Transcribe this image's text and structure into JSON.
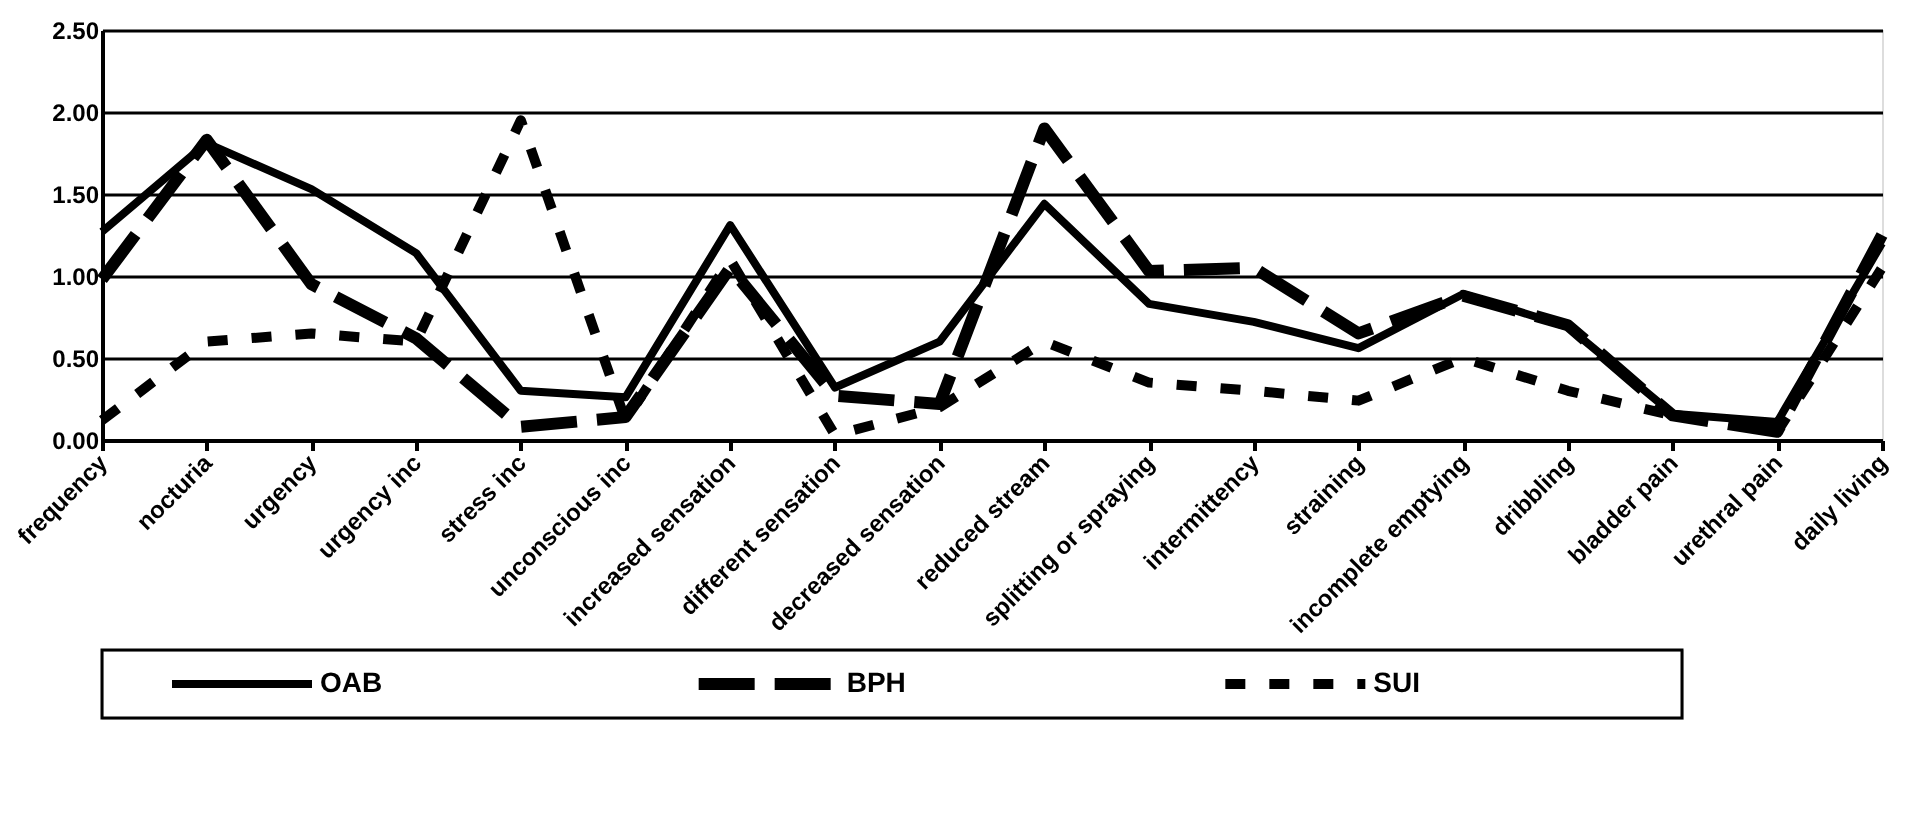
{
  "chart_data": {
    "type": "line",
    "categories": [
      "frequency",
      "nocturia",
      "urgency",
      "urgency inc",
      "stress inc",
      "unconscious inc",
      "increased sensation",
      "different sensation",
      "decreased sensation",
      "reduced stream",
      "splitting or spraying",
      "intermittency",
      "straining",
      "incomplete emptying",
      "dribbling",
      "bladder pain",
      "urethral pain",
      "daily living"
    ],
    "series": [
      {
        "name": "OAB",
        "color": "#000000",
        "line_style": "solid",
        "values": [
          1.27,
          1.81,
          1.53,
          1.14,
          0.3,
          0.26,
          1.31,
          0.32,
          0.6,
          1.44,
          0.83,
          0.72,
          0.56,
          0.89,
          0.69,
          0.16,
          0.11,
          1.2
        ]
      },
      {
        "name": "BPH",
        "color": "#000000",
        "line_style": "dashed",
        "values": [
          0.98,
          1.83,
          0.95,
          0.62,
          0.08,
          0.14,
          1.05,
          0.27,
          0.22,
          1.9,
          1.03,
          1.05,
          0.65,
          0.88,
          0.7,
          0.15,
          0.05,
          1.25
        ]
      },
      {
        "name": "SUI",
        "color": "#000000",
        "line_style": "dotted",
        "values": [
          0.12,
          0.6,
          0.65,
          0.6,
          1.95,
          0.12,
          1.1,
          0.03,
          0.2,
          0.6,
          0.35,
          0.3,
          0.24,
          0.5,
          0.3,
          0.15,
          0.05,
          1.05
        ]
      }
    ],
    "ylim": [
      0,
      2.5
    ],
    "yticks": [
      {
        "value": 0,
        "label": "0.00"
      },
      {
        "value": 0.5,
        "label": "0.50"
      },
      {
        "value": 1,
        "label": "1.00"
      },
      {
        "value": 1.5,
        "label": "1.50"
      },
      {
        "value": 2,
        "label": "2.00"
      },
      {
        "value": 2.5,
        "label": "2.50"
      }
    ],
    "grid": "y",
    "legend": "bottom",
    "marker": "none"
  }
}
